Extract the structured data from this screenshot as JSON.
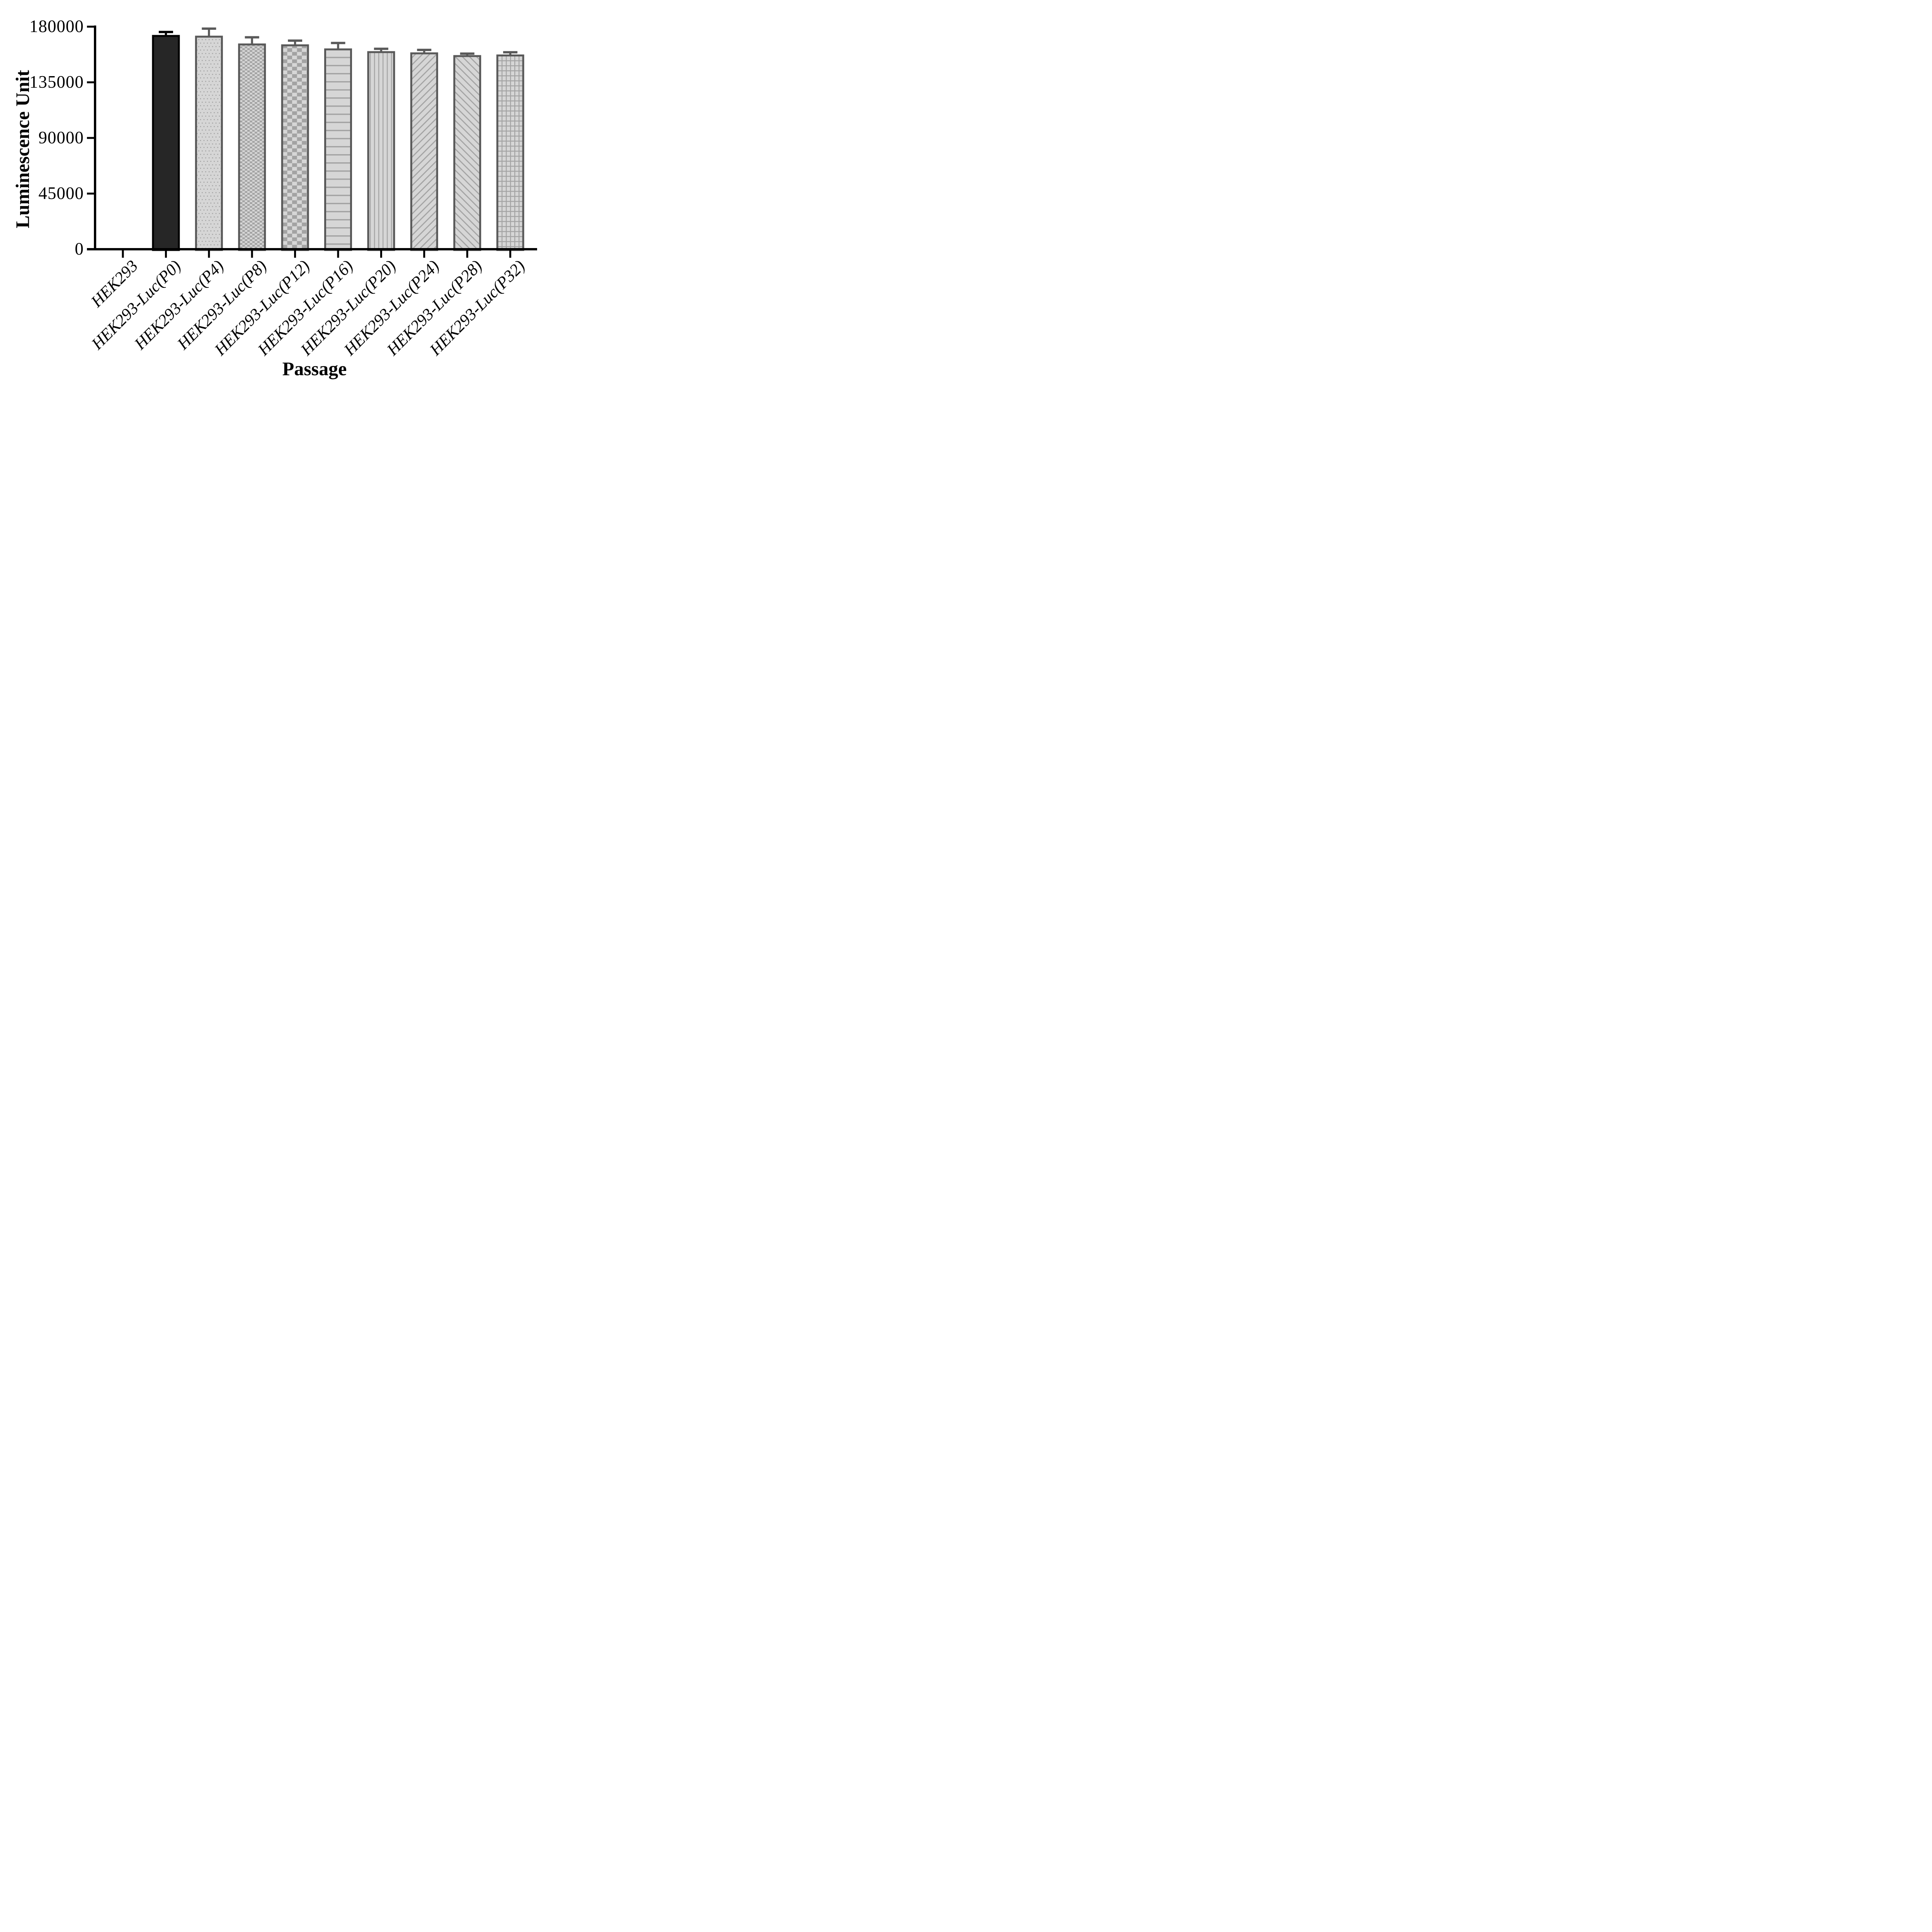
{
  "figure": {
    "background": "#ffffff"
  },
  "y_axis": {
    "title": "Luminescence Unit",
    "tick_labels": [
      "0",
      "45000",
      "90000",
      "135000",
      "180000"
    ]
  },
  "x_axis": {
    "title": "Passage",
    "tick_labels": [
      "HEK293",
      "HEK293-Luc(P0)",
      "HEK293-Luc(P4)",
      "HEK293-Luc(P8)",
      "HEK293-Luc(P12)",
      "HEK293-Luc(P16)",
      "HEK293-Luc(P20)",
      "HEK293-Luc(P24)",
      "HEK293-Luc(P28)",
      "HEK293-Luc(P32)"
    ]
  },
  "colors": {
    "axis": "#000000",
    "text": "#000000",
    "bar_dark_fill": "#262626",
    "bar_dark_border": "#000000",
    "bar_border": "#595959",
    "pattern_bg": "#d6d6d6",
    "pattern_fg": "#a3a3a3",
    "error_dark": "#000000",
    "error_gray": "#595959"
  },
  "chart_data": {
    "type": "bar",
    "title": "",
    "xlabel": "Passage",
    "ylabel": "Luminescence Unit",
    "ylim": [
      0,
      180000
    ],
    "yticks": [
      0,
      45000,
      90000,
      135000,
      180000
    ],
    "grid": false,
    "legend_position": "none",
    "categories": [
      "HEK293",
      "HEK293-Luc(P0)",
      "HEK293-Luc(P4)",
      "HEK293-Luc(P8)",
      "HEK293-Luc(P12)",
      "HEK293-Luc(P16)",
      "HEK293-Luc(P20)",
      "HEK293-Luc(P24)",
      "HEK293-Luc(P28)",
      "HEK293-Luc(P32)"
    ],
    "values": [
      0,
      173300,
      172700,
      166400,
      165700,
      162400,
      160200,
      159200,
      157000,
      157500
    ],
    "errors_sd_upper": [
      0,
      2400,
      5700,
      5000,
      3000,
      4400,
      1900,
      2000,
      1200,
      1800
    ],
    "bar_styles": [
      "none",
      "solid-dark",
      "dots",
      "checker-fine",
      "checker-coarse",
      "hlines",
      "vlines",
      "diag-forward",
      "diag-backward",
      "grid"
    ],
    "error_bar_style": "upper-cap"
  }
}
